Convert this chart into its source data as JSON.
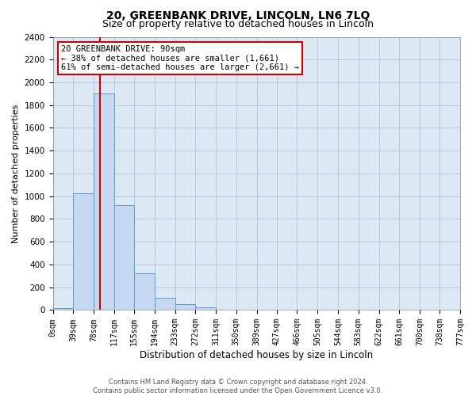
{
  "title": "20, GREENBANK DRIVE, LINCOLN, LN6 7LQ",
  "subtitle": "Size of property relative to detached houses in Lincoln",
  "xlabel": "Distribution of detached houses by size in Lincoln",
  "ylabel": "Number of detached properties",
  "bar_edges": [
    0,
    39,
    78,
    117,
    155,
    194,
    233,
    272,
    311,
    350,
    389,
    427,
    466,
    505,
    544,
    583,
    622,
    661,
    700,
    738,
    777
  ],
  "bar_heights": [
    20,
    1025,
    1900,
    920,
    320,
    105,
    50,
    25,
    0,
    0,
    0,
    0,
    0,
    0,
    0,
    0,
    0,
    0,
    0,
    0
  ],
  "bar_color": "#c5d8ef",
  "bar_edge_color": "#5b9bd5",
  "vline_x": 90,
  "vline_color": "#cc0000",
  "ylim": [
    0,
    2400
  ],
  "yticks": [
    0,
    200,
    400,
    600,
    800,
    1000,
    1200,
    1400,
    1600,
    1800,
    2000,
    2200,
    2400
  ],
  "annotation_line1": "20 GREENBANK DRIVE: 90sqm",
  "annotation_line2": "← 38% of detached houses are smaller (1,661)",
  "annotation_line3": "61% of semi-detached houses are larger (2,661) →",
  "footer_line1": "Contains HM Land Registry data © Crown copyright and database right 2024.",
  "footer_line2": "Contains public sector information licensed under the Open Government Licence v3.0.",
  "background_color": "#ffffff",
  "plot_bg_color": "#dce9f5",
  "grid_color": "#b0c4d8",
  "title_fontsize": 10,
  "subtitle_fontsize": 9,
  "tick_label_fontsize": 7,
  "ylabel_fontsize": 8,
  "xlabel_fontsize": 8.5
}
